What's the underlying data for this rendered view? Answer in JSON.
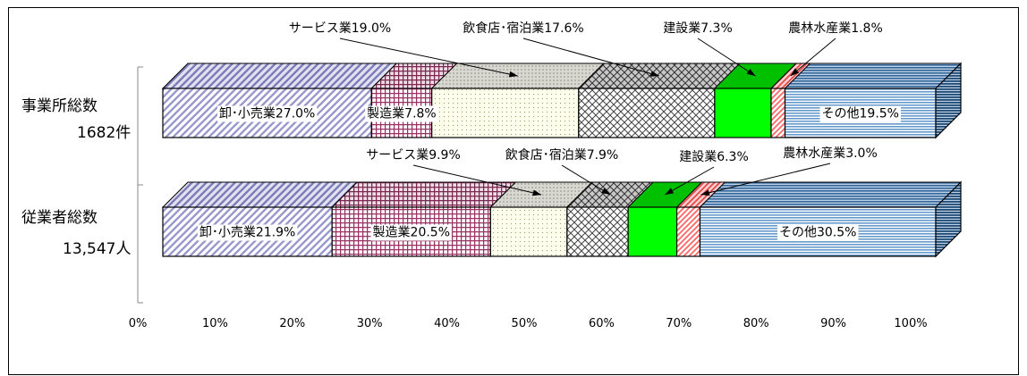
{
  "chart_data": {
    "type": "bar",
    "stacked": "100%",
    "orientation": "horizontal",
    "xlim": [
      0,
      100
    ],
    "x_ticks": [
      "0%",
      "10%",
      "20%",
      "30%",
      "40%",
      "50%",
      "60%",
      "70%",
      "80%",
      "90%",
      "100%"
    ],
    "rows": [
      {
        "name_line1": "事業所総数",
        "name_line2": "1682件",
        "segments": [
          {
            "category": "卸・小売業",
            "value": 27.0,
            "label": "卸･小売業27.0%"
          },
          {
            "category": "製造業",
            "value": 7.8,
            "label": "製造業7.8%"
          },
          {
            "category": "サービス業",
            "value": 19.0,
            "label": "サービス業19.0%"
          },
          {
            "category": "飲食店・宿泊業",
            "value": 17.6,
            "label": "飲食店･宿泊業17.6%"
          },
          {
            "category": "建設業",
            "value": 7.3,
            "label": "建設業7.3%"
          },
          {
            "category": "農林水産業",
            "value": 1.8,
            "label": "農林水産業1.8%"
          },
          {
            "category": "その他",
            "value": 19.5,
            "label": "その他19.5%"
          }
        ]
      },
      {
        "name_line1": "従業者総数",
        "name_line2": "13,547人",
        "segments": [
          {
            "category": "卸・小売業",
            "value": 21.9,
            "label": "卸･小売業21.9%"
          },
          {
            "category": "製造業",
            "value": 20.5,
            "label": "製造業20.5%"
          },
          {
            "category": "サービス業",
            "value": 9.9,
            "label": "サービス業9.9%"
          },
          {
            "category": "飲食店・宿泊業",
            "value": 7.9,
            "label": "飲食店･宿泊業7.9%"
          },
          {
            "category": "建設業",
            "value": 6.3,
            "label": "建設業6.3%"
          },
          {
            "category": "農林水産業",
            "value": 3.0,
            "label": "農林水産業3.0%"
          },
          {
            "category": "その他",
            "value": 30.5,
            "label": "その他30.5%"
          }
        ]
      }
    ],
    "colors": {
      "卸・小売業": "#9999cc",
      "製造業": "#993366",
      "サービス業": "#ffffcc",
      "飲食店・宿泊業": "#808080",
      "建設業": "#00ff00",
      "農林水産業": "#ff9999",
      "その他": "#336699"
    }
  }
}
